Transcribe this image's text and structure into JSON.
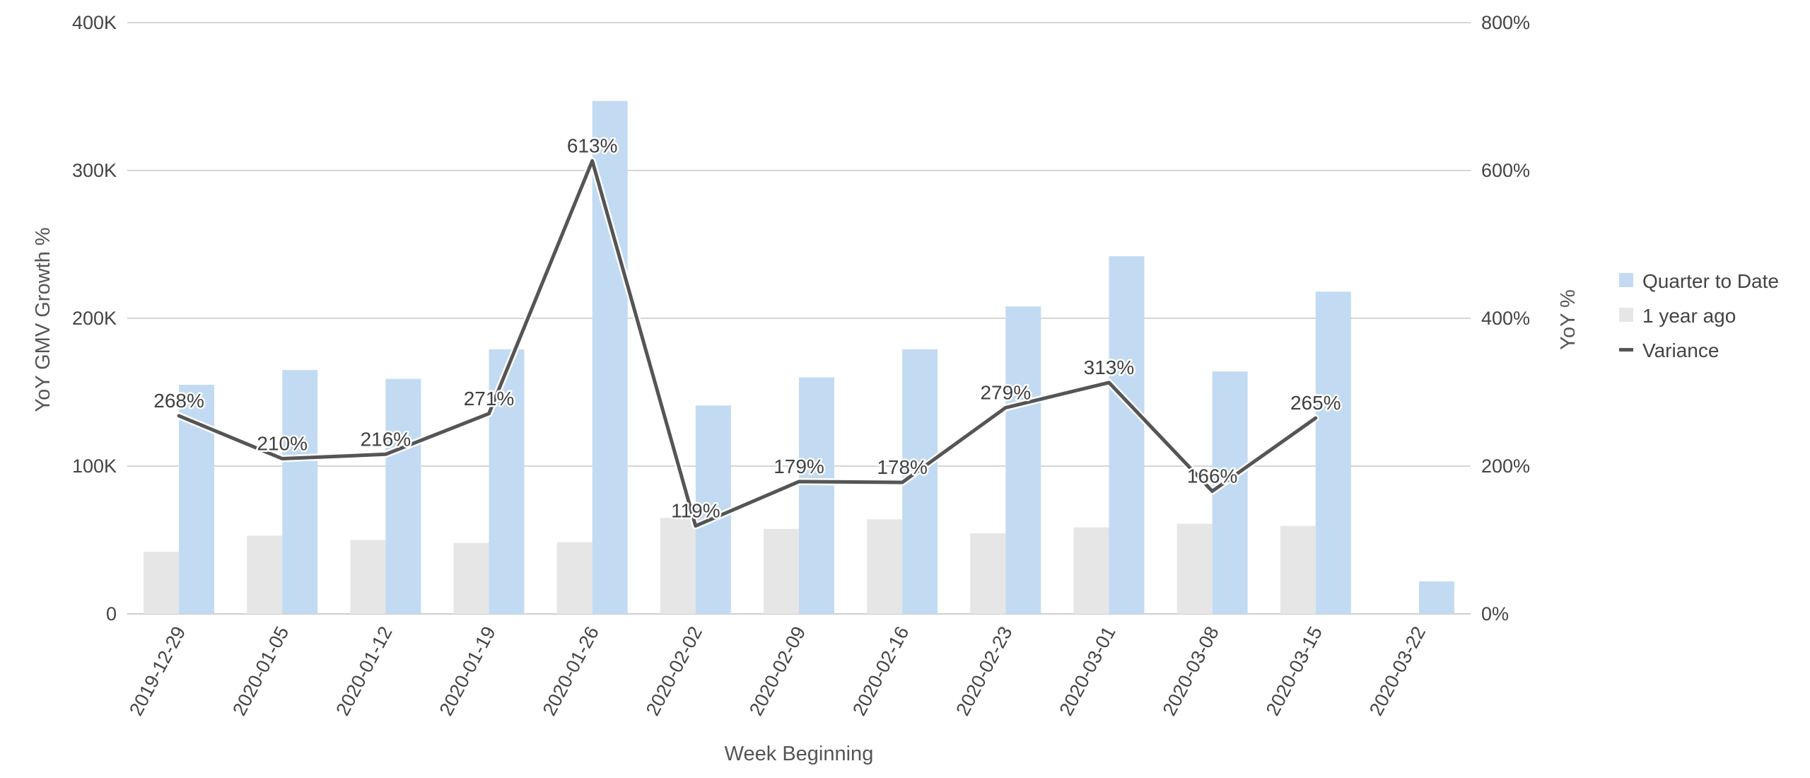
{
  "chart_data": {
    "type": "bar",
    "categories": [
      "2019-12-29",
      "2020-01-05",
      "2020-01-12",
      "2020-01-19",
      "2020-01-26",
      "2020-02-02",
      "2020-02-09",
      "2020-02-16",
      "2020-02-23",
      "2020-03-01",
      "2020-03-08",
      "2020-03-15",
      "2020-03-22"
    ],
    "series": [
      {
        "name": "1 year ago",
        "type": "bar",
        "axis": "left",
        "color": "#e6e6e6",
        "values": [
          42000,
          53000,
          50000,
          48000,
          48500,
          65000,
          57500,
          64000,
          54500,
          58500,
          61000,
          59500,
          null
        ]
      },
      {
        "name": "Quarter to Date",
        "type": "bar",
        "axis": "left",
        "color": "#c2dbf2",
        "values": [
          155000,
          165000,
          159000,
          179000,
          347000,
          141000,
          160000,
          179000,
          208000,
          242000,
          164000,
          218000,
          22000
        ]
      },
      {
        "name": "Variance",
        "type": "line",
        "axis": "right",
        "color": "#555555",
        "values": [
          268,
          210,
          216,
          271,
          613,
          119,
          179,
          178,
          279,
          313,
          166,
          265,
          null
        ],
        "labels": [
          "268%",
          "210%",
          "216%",
          "271%",
          "613%",
          "119%",
          "179%",
          "178%",
          "279%",
          "313%",
          "166%",
          "265%",
          ""
        ]
      }
    ],
    "xlabel": "Week Beginning",
    "ylabel": "YoY GMV Growth %",
    "y2label": "YoY %",
    "ylim": [
      0,
      400000
    ],
    "y2lim": [
      0,
      800
    ],
    "yticks": [
      "0",
      "100K",
      "200K",
      "300K",
      "400K"
    ],
    "y2ticks": [
      "0%",
      "200%",
      "400%",
      "600%",
      "800%"
    ],
    "grid": true,
    "legend_position": "right"
  }
}
